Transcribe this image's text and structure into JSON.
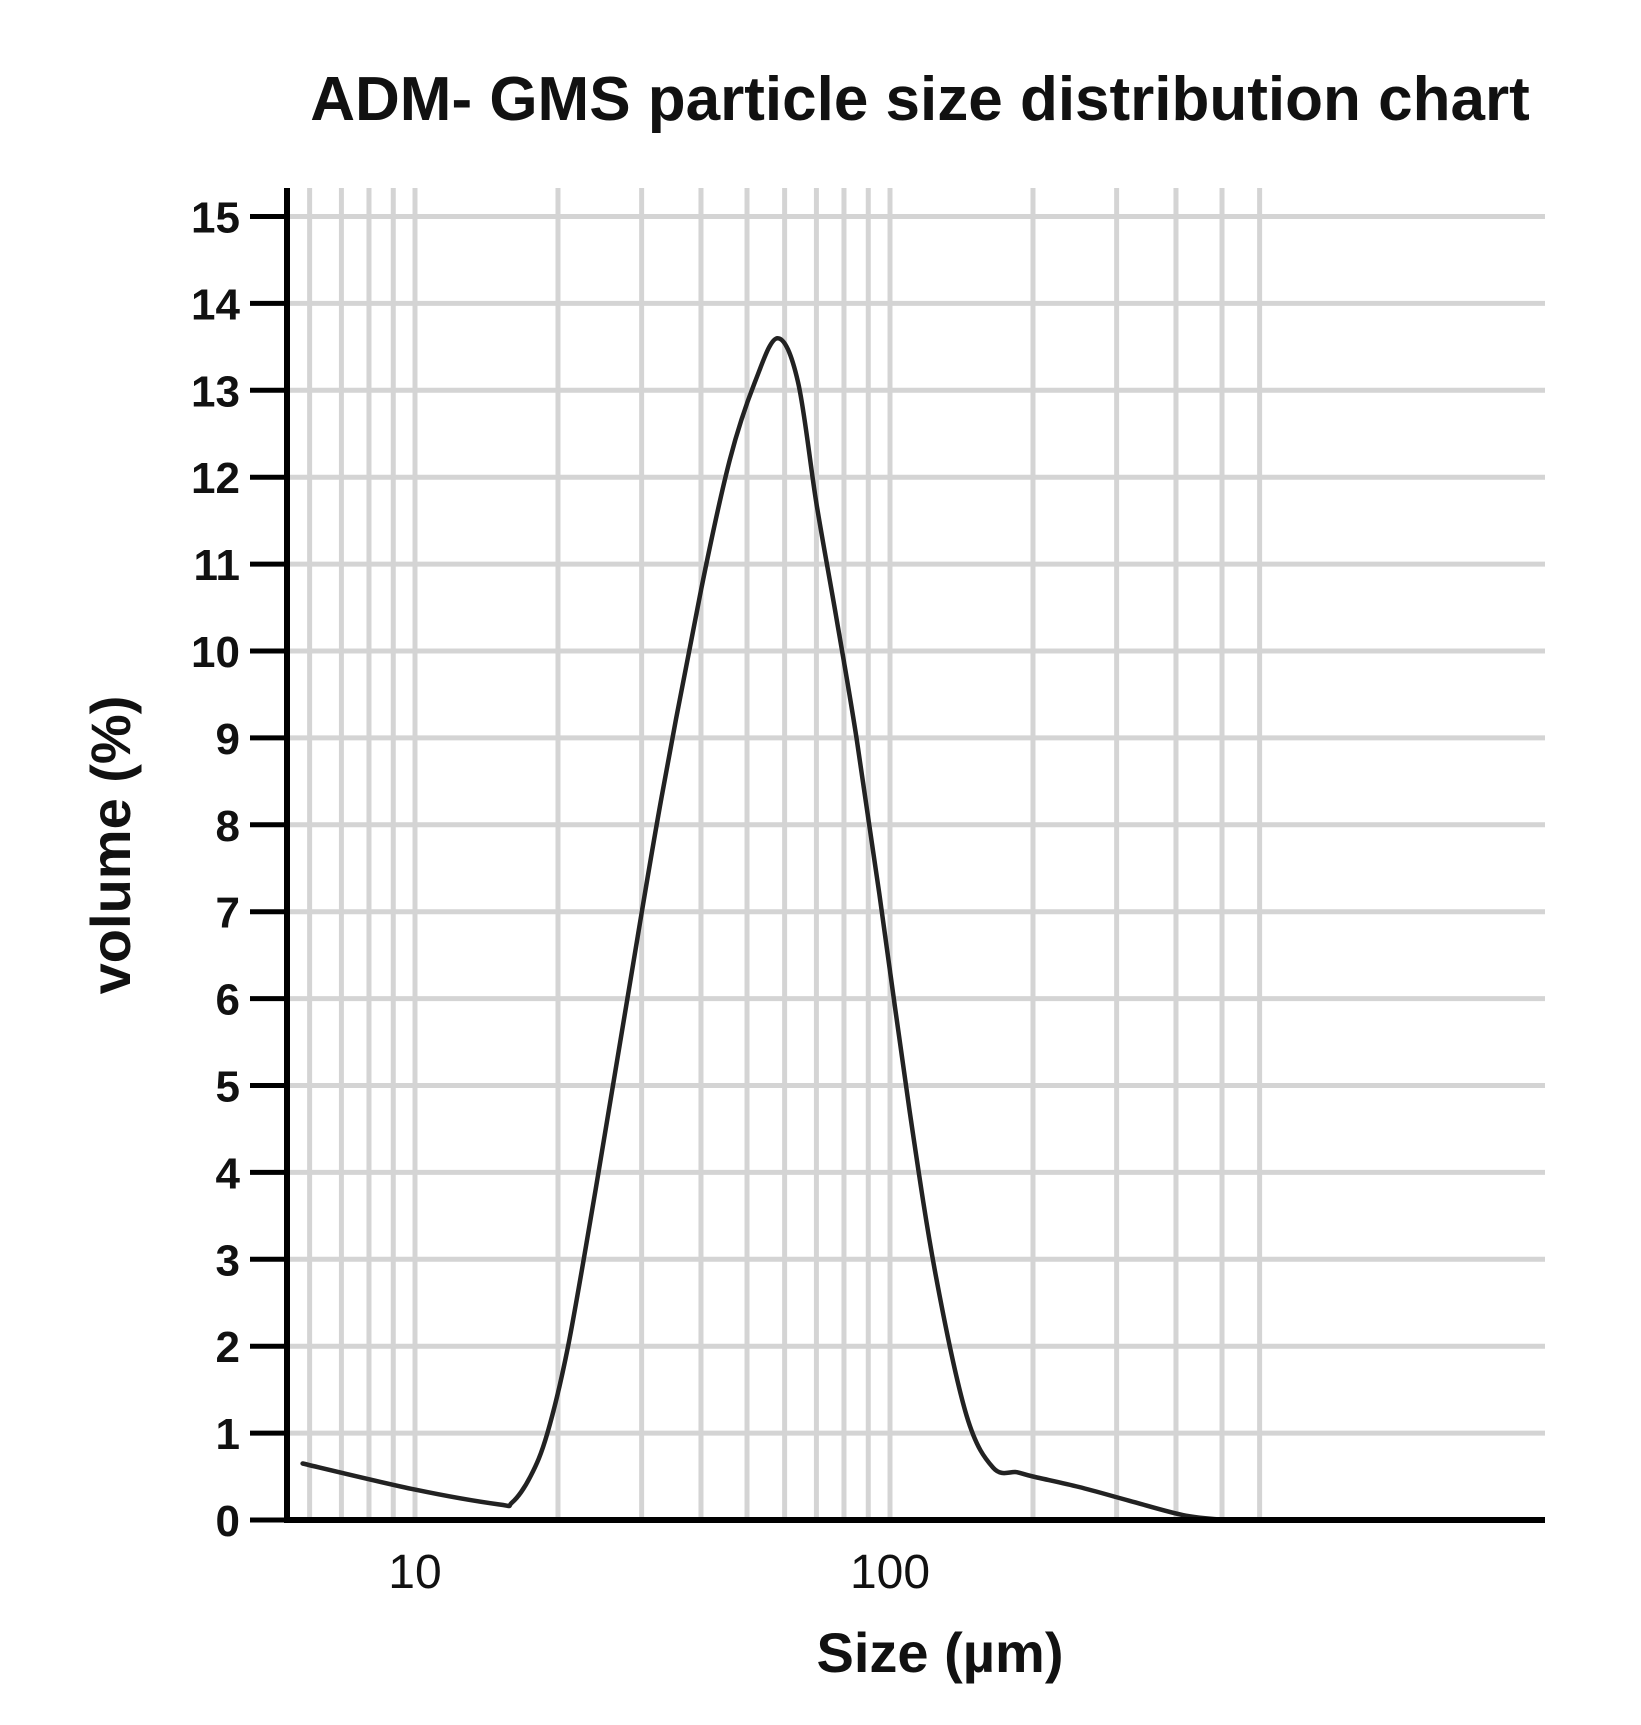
{
  "chart_data": {
    "type": "line",
    "title": "ADM- GMS particle size distribution chart",
    "xlabel": "Size (µm)",
    "ylabel": "volume (%)",
    "x_scale": "log",
    "xlim": [
      5.8,
      620
    ],
    "ylim": [
      0,
      15
    ],
    "grid": true,
    "legend": "none",
    "x_ticks": [
      {
        "value": 10,
        "label": "10"
      },
      {
        "value": 100,
        "label": "100"
      }
    ],
    "y_ticks": [
      {
        "value": 0,
        "label": "0"
      },
      {
        "value": 1,
        "label": "1"
      },
      {
        "value": 2,
        "label": "2"
      },
      {
        "value": 3,
        "label": "3"
      },
      {
        "value": 4,
        "label": "4"
      },
      {
        "value": 5,
        "label": "5"
      },
      {
        "value": 6,
        "label": "6"
      },
      {
        "value": 7,
        "label": "7"
      },
      {
        "value": 8,
        "label": "8"
      },
      {
        "value": 9,
        "label": "9"
      },
      {
        "value": 10,
        "label": "10"
      },
      {
        "value": 11,
        "label": "11"
      },
      {
        "value": 12,
        "label": "12"
      },
      {
        "value": 13,
        "label": "13"
      },
      {
        "value": 14,
        "label": "14"
      },
      {
        "value": 15,
        "label": "15"
      }
    ],
    "series": [
      {
        "color": "#222222",
        "x": [
          5.8,
          10,
          15,
          16,
          17.5,
          19,
          21,
          24,
          28,
          33,
          40,
          46,
          52,
          58,
          64,
          70,
          77,
          85,
          95,
          110,
          125,
          145,
          165,
          185,
          200,
          250,
          320,
          420,
          520,
          620
        ],
        "y": [
          0.65,
          0.35,
          0.18,
          0.2,
          0.5,
          1.0,
          2.0,
          3.8,
          6.0,
          8.3,
          10.7,
          12.2,
          13.1,
          13.6,
          13.1,
          11.7,
          10.4,
          9.0,
          7.2,
          4.7,
          2.8,
          1.2,
          0.6,
          0.55,
          0.5,
          0.38,
          0.22,
          0.05,
          0.0,
          0.0
        ]
      }
    ]
  }
}
